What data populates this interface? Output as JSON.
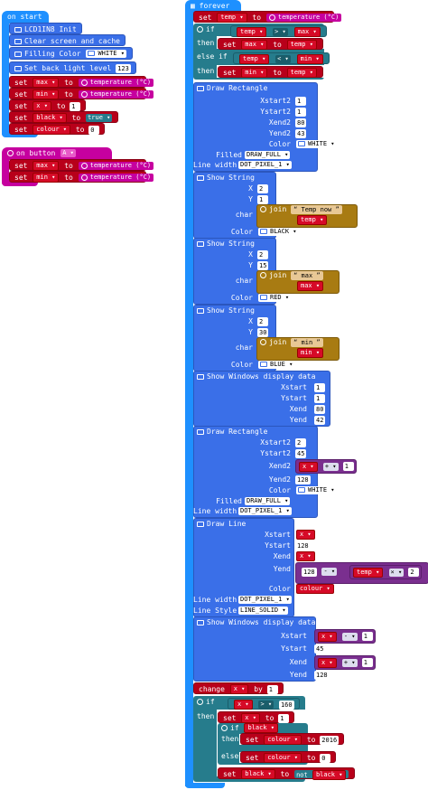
{
  "on_start": {
    "hat": "on start",
    "init": "LCD1IN8 Init",
    "clear": "Clear screen and cache",
    "fill_label": "Filling Color",
    "fill_color": "WHITE",
    "backlight_label": "Set back light level",
    "backlight_value": "123",
    "sets": [
      {
        "var": "max",
        "to": "to",
        "val": "temperature (°C)"
      },
      {
        "var": "min",
        "to": "to",
        "val": "temperature (°C)"
      },
      {
        "var": "x",
        "to": "to",
        "val": "1"
      },
      {
        "var": "black",
        "to": "to",
        "val": "true"
      },
      {
        "var": "colour",
        "to": "to",
        "val": "0"
      }
    ]
  },
  "on_button": {
    "hat_prefix": "on button",
    "button": "A",
    "hat_suffix": "pressed",
    "sets": [
      {
        "var": "max",
        "to": "to",
        "val": "temperature (°C)"
      },
      {
        "var": "min",
        "to": "to",
        "val": "temperature (°C)"
      }
    ]
  },
  "forever": {
    "hat": "forever",
    "set_temp": {
      "var": "temp",
      "to": "to",
      "val": "temperature (°C)"
    },
    "if1": {
      "kw": "if",
      "a": "temp",
      "op": ">",
      "b": "max",
      "then": "then",
      "set": "max",
      "to": "to",
      "val": "temp"
    },
    "elseif": {
      "kw": "else if",
      "a": "temp",
      "op": "<",
      "b": "min",
      "then": "then",
      "set": "min",
      "to": "to",
      "val": "temp"
    },
    "rect1": {
      "title": "Draw Rectangle",
      "labels": [
        "Xstart2",
        "Ystart2",
        "Xend2",
        "Yend2",
        "Color",
        "Filled",
        "Line width"
      ],
      "values": [
        "1",
        "1",
        "80",
        "43",
        "WHITE",
        "DRAW_FULL",
        "DOT_PIXEL_1"
      ]
    },
    "str1": {
      "title": "Show String",
      "x": "2",
      "y": "1",
      "join": "join",
      "s": "Temp now",
      "v": "temp",
      "color": "BLACK"
    },
    "str2": {
      "title": "Show String",
      "x": "2",
      "y": "15",
      "join": "join",
      "s": "max",
      "v": "max",
      "color": "RED"
    },
    "str3": {
      "title": "Show String",
      "x": "2",
      "y": "30",
      "join": "join",
      "s": "min",
      "v": "min",
      "color": "BLUE"
    },
    "str_labels": {
      "x": "X",
      "y": "Y",
      "char": "char",
      "color": "Color"
    },
    "win1": {
      "title": "Show Windows display data",
      "labels": [
        "Xstart",
        "Ystart",
        "Xend",
        "Yend"
      ],
      "values": [
        "1",
        "1",
        "80",
        "42"
      ]
    },
    "rect2": {
      "title": "Draw Rectangle",
      "labels": [
        "Xstart2",
        "Ystart2",
        "Xend2",
        "Yend2",
        "Color",
        "Filled",
        "Line width"
      ],
      "xstart": "2",
      "ystart": "45",
      "xend_var": "x",
      "xend_op": "+",
      "xend_num": "1",
      "yend": "128",
      "color": "WHITE",
      "filled": "DRAW_FULL",
      "width": "DOT_PIXEL_1"
    },
    "line": {
      "title": "Draw Line",
      "labels": [
        "Xstart",
        "Ystart",
        "Xend",
        "Yend",
        "Color",
        "Line width",
        "Line Style"
      ],
      "xstart": "x",
      "ystart": "128",
      "xend": "x",
      "yend_a": "128",
      "yend_op": "-",
      "yend_var": "temp",
      "yend_op2": "×",
      "yend_num": "2",
      "color": "colour",
      "width": "DOT_PIXEL_1",
      "style": "LINE_SOLID"
    },
    "win2": {
      "title": "Show Windows display data",
      "labels": [
        "Xstart",
        "Ystart",
        "Xend",
        "Yend"
      ],
      "xstart_var": "x",
      "xstart_op": "-",
      "xstart_num": "1",
      "ystart": "45",
      "xend_var": "x",
      "xend_op": "+",
      "xend_num": "1",
      "yend": "128"
    },
    "change": {
      "kw": "change",
      "var": "x",
      "by": "by",
      "val": "1"
    },
    "if2": {
      "kw": "if",
      "a": "x",
      "op": ">",
      "b": "160",
      "then": "then",
      "set_x": {
        "var": "x",
        "to": "to",
        "val": "1"
      },
      "inner_if": {
        "kw": "if",
        "cond": "black",
        "then": "then",
        "set": "colour",
        "to": "to",
        "val": "2016",
        "else": "else",
        "set2": "colour",
        "val2": "0"
      },
      "set_black": {
        "var": "black",
        "to": "to",
        "not": "not",
        "val": "black"
      }
    }
  }
}
